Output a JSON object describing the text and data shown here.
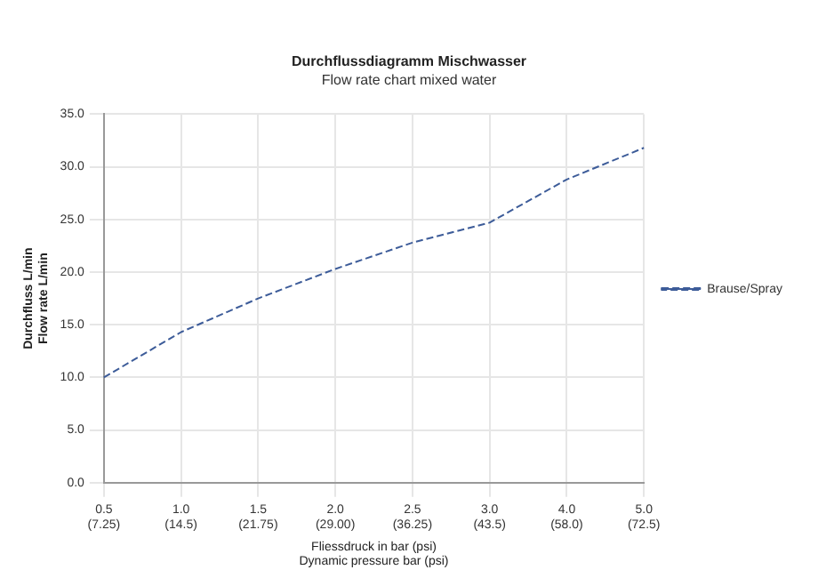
{
  "chart_data": {
    "type": "line",
    "title": "Durchflussdiagramm Mischwasser",
    "subtitle": "Flow rate chart mixed water",
    "xlabel": "Fliessdruck in bar (psi)\nDynamic pressure bar (psi)",
    "ylabel": "Durchfluss L/min\nFlow rate L/min",
    "categories": [
      "0.5\n(7.25)",
      "1.0\n(14.5)",
      "1.5\n(21.75)",
      "2.0\n(29.00)",
      "2.5\n(36.25)",
      "3.0\n(43.5)",
      "4.0\n(58.0)",
      "5.0\n(72.5)"
    ],
    "series": [
      {
        "name": "Brause/Spray",
        "color": "#3d5c99",
        "values": [
          10.0,
          14.3,
          17.5,
          20.3,
          22.8,
          24.7,
          28.8,
          31.8
        ]
      }
    ],
    "ylim": [
      0,
      35
    ],
    "yticks": [
      {
        "value": 0,
        "label": "0.0"
      },
      {
        "value": 5,
        "label": "5.0"
      },
      {
        "value": 10,
        "label": "10.0"
      },
      {
        "value": 15,
        "label": "15.0"
      },
      {
        "value": 20,
        "label": "20.0"
      },
      {
        "value": 25,
        "label": "25.0"
      },
      {
        "value": 30,
        "label": "30.0"
      },
      {
        "value": 35,
        "label": "35.0"
      }
    ],
    "grid": true,
    "legend": "right",
    "marker": "none",
    "line_style": "dashed"
  }
}
